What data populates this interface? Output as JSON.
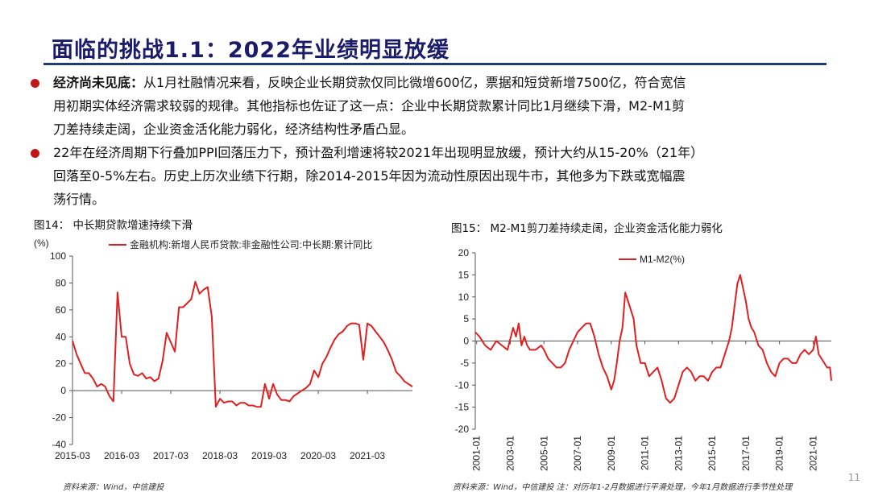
{
  "slide": {
    "title": "面临的挑战1.1：2022年业绩明显放缓",
    "page_number": "11",
    "accent_color": "#c01818",
    "title_color": "#1b1b6b"
  },
  "bullets": [
    {
      "bold": "经济尚未见底：",
      "lines": [
        "从1月社融情况来看，反映企业长期贷款仅同比微增600亿，票据和短贷新增7500亿，符合宽信",
        "用初期实体经济需求较弱的规律。其他指标也佐证了这一点：企业中长期贷款累计同比1月继续下滑，M2-M1剪",
        "刀差持续走阔，企业资金活化能力弱化，经济结构性矛盾凸显。"
      ]
    },
    {
      "bold": "",
      "lines": [
        "22年在经济周期下行叠加PPI回落压力下，预计盈利增速将较2021年出现明显放缓，预计大约从15-20%（21年）",
        "回落至0-5%左右。历史上历次业绩下行期，除2014-2015年因为流动性原因出现牛市，其他多为下跌或宽幅震",
        "荡行情。"
      ]
    }
  ],
  "fig14_caption": "图14：  中长期贷款增速持续下滑",
  "fig15_caption": "图15：  M2-M1剪刀差持续走阔，企业资金活化能力弱化",
  "source_left": "资料来源：Wind，中信建投",
  "source_right": "资料来源：Wind，中信建投        注：对历年1-2月数据进行平滑处理，今年1月数据进行季节性处理",
  "chart_data": [
    {
      "type": "line",
      "title": "图14：  中长期贷款增速持续下滑",
      "ylabel": "(%)",
      "ylim": [
        -40,
        100
      ],
      "yticks": [
        -40,
        -20,
        0,
        20,
        40,
        60,
        80,
        100
      ],
      "xticks": [
        "2015-03",
        "2016-03",
        "2017-03",
        "2018-03",
        "2019-03",
        "2020-03",
        "2021-03"
      ],
      "xlim": [
        2015.167,
        2022.083
      ],
      "grid": false,
      "legend": "top",
      "series": [
        {
          "name": "金融机构:新增人民币贷款:非金融性公司:中长期:累计同比",
          "color": "#e02020",
          "x": [
            2015.167,
            2015.25,
            2015.333,
            2015.417,
            2015.5,
            2015.583,
            2015.667,
            2015.75,
            2015.833,
            2015.917,
            2016.0,
            2016.083,
            2016.167,
            2016.25,
            2016.333,
            2016.417,
            2016.5,
            2016.583,
            2016.667,
            2016.75,
            2016.833,
            2016.917,
            2017.0,
            2017.083,
            2017.167,
            2017.25,
            2017.333,
            2017.417,
            2017.5,
            2017.583,
            2017.667,
            2017.75,
            2017.833,
            2017.917,
            2018.0,
            2018.083,
            2018.167,
            2018.25,
            2018.333,
            2018.417,
            2018.5,
            2018.583,
            2018.667,
            2018.75,
            2018.833,
            2018.917,
            2019.0,
            2019.083,
            2019.167,
            2019.25,
            2019.333,
            2019.417,
            2019.5,
            2019.583,
            2019.667,
            2019.75,
            2019.833,
            2019.917,
            2020.0,
            2020.083,
            2020.167,
            2020.25,
            2020.333,
            2020.417,
            2020.5,
            2020.583,
            2020.667,
            2020.75,
            2020.833,
            2020.917,
            2021.0,
            2021.083,
            2021.167,
            2021.25,
            2021.333,
            2021.417,
            2021.5,
            2021.583,
            2021.667,
            2021.75,
            2021.833,
            2021.917,
            2022.0,
            2022.083
          ],
          "y": [
            37,
            27,
            20,
            13,
            13,
            9,
            3,
            5,
            3,
            -4,
            -8,
            73,
            40,
            40,
            20,
            12,
            11,
            13,
            9,
            10,
            7,
            9,
            22,
            43,
            36,
            29,
            62,
            62,
            65,
            68,
            81,
            72,
            75,
            77,
            55,
            -12,
            -6,
            -9,
            -8,
            -8,
            -11,
            -9,
            -9,
            -11,
            -11,
            -12,
            -12,
            5,
            -6,
            5,
            -3,
            -7,
            -7,
            -8,
            -4,
            -2,
            0,
            2,
            5,
            15,
            10,
            20,
            25,
            32,
            38,
            42,
            44,
            48,
            50,
            50,
            49,
            23,
            50,
            48,
            44,
            40,
            36,
            30,
            23,
            14,
            11,
            7,
            5,
            3
          ]
        }
      ]
    },
    {
      "type": "line",
      "title": "图15：  M2-M1剪刀差持续走阔，企业资金活化能力弱化",
      "ylim": [
        -20,
        20
      ],
      "yticks": [
        -20,
        -15,
        -10,
        -5,
        0,
        5,
        10,
        15,
        20
      ],
      "xticks": [
        "2001-01",
        "2003-01",
        "2005-01",
        "2007-01",
        "2009-01",
        "2011-01",
        "2013-01",
        "2015-01",
        "2017-01",
        "2019-01",
        "2021-01"
      ],
      "xlim": [
        2000.917,
        2022.083
      ],
      "grid": false,
      "legend": "top",
      "series": [
        {
          "name": "M1-M2(%)",
          "color": "#e02020",
          "x": [
            2000.917,
            2001.167,
            2001.5,
            2001.833,
            2002.167,
            2002.5,
            2002.833,
            2003.167,
            2003.333,
            2003.5,
            2003.667,
            2003.833,
            2004.0,
            2004.167,
            2004.5,
            2004.833,
            2005.0,
            2005.25,
            2005.5,
            2005.75,
            2006.0,
            2006.25,
            2006.5,
            2006.75,
            2007.0,
            2007.25,
            2007.5,
            2007.75,
            2008.0,
            2008.25,
            2008.5,
            2008.75,
            2009.0,
            2009.167,
            2009.333,
            2009.5,
            2009.667,
            2009.833,
            2010.0,
            2010.167,
            2010.333,
            2010.5,
            2010.75,
            2011.0,
            2011.25,
            2011.5,
            2011.75,
            2012.0,
            2012.25,
            2012.5,
            2012.75,
            2013.0,
            2013.25,
            2013.5,
            2013.75,
            2014.0,
            2014.25,
            2014.5,
            2014.75,
            2015.0,
            2015.25,
            2015.5,
            2015.75,
            2016.0,
            2016.167,
            2016.333,
            2016.5,
            2016.667,
            2016.833,
            2017.0,
            2017.167,
            2017.333,
            2017.5,
            2017.75,
            2018.0,
            2018.25,
            2018.5,
            2018.75,
            2019.0,
            2019.25,
            2019.5,
            2019.75,
            2020.0,
            2020.25,
            2020.5,
            2020.75,
            2021.0,
            2021.167,
            2021.333,
            2021.5,
            2021.667,
            2021.833,
            2022.0,
            2022.083
          ],
          "y": [
            2,
            1,
            -1,
            -2,
            0,
            -1,
            -2,
            3,
            1,
            4,
            -1,
            1,
            -1,
            -2,
            -2,
            -1,
            -2,
            -4,
            -5,
            -6,
            -6,
            -5,
            -2,
            0,
            2,
            3,
            4,
            4,
            1,
            -3,
            -6,
            -8,
            -11,
            -9,
            -5,
            0,
            3,
            11,
            9,
            7,
            5,
            -1,
            -5,
            -5,
            -8,
            -7,
            -6,
            -9,
            -13,
            -14,
            -13,
            -10,
            -7,
            -6,
            -7,
            -9,
            -8,
            -8,
            -9,
            -7,
            -6,
            -6,
            -3,
            0,
            3,
            8,
            13,
            15,
            12,
            9,
            5,
            3,
            2,
            -1,
            -2,
            -5,
            -7,
            -8,
            -5,
            -4,
            -4,
            -5,
            -5,
            -3,
            -2,
            -3,
            -2,
            1,
            -3,
            -4,
            -5,
            -6,
            -6,
            -9
          ]
        }
      ]
    }
  ]
}
